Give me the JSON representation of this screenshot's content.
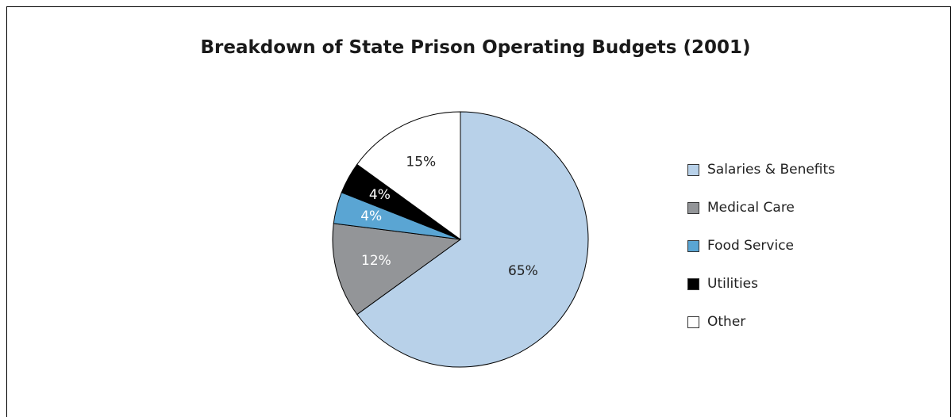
{
  "chart_data": {
    "type": "pie",
    "title": "Breakdown of State Prison Operating Budgets (2001)",
    "start_angle_deg": 0,
    "direction": "clockwise",
    "legend_position": "right",
    "slices": [
      {
        "label": "Salaries & Benefits",
        "value": 65,
        "value_label": "65%",
        "color": "#b8d1e9",
        "text_color": "#222222"
      },
      {
        "label": "Medical Care",
        "value": 12,
        "value_label": "12%",
        "color": "#939598",
        "text_color": "#ffffff"
      },
      {
        "label": "Food Service",
        "value": 4,
        "value_label": "4%",
        "color": "#5aa5d3",
        "text_color": "#ffffff"
      },
      {
        "label": "Utilities",
        "value": 4,
        "value_label": "4%",
        "color": "#000000",
        "text_color": "#ffffff"
      },
      {
        "label": "Other",
        "value": 15,
        "value_label": "15%",
        "color": "#ffffff",
        "text_color": "#222222"
      }
    ]
  }
}
